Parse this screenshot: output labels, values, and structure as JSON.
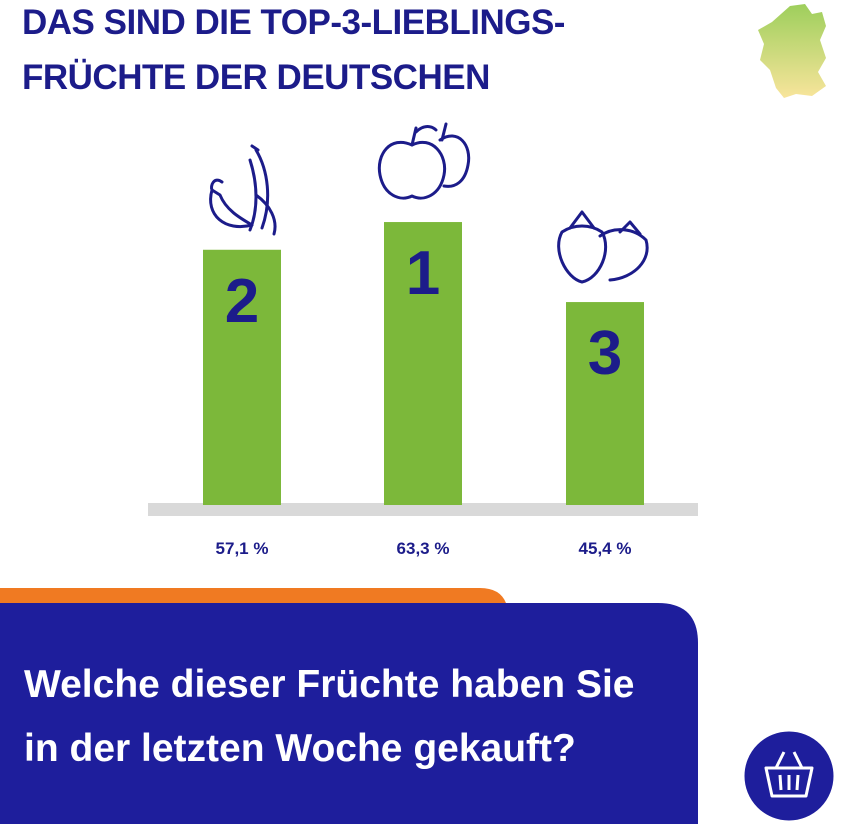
{
  "chart_data": {
    "type": "bar",
    "title": [
      "DAS SIND DIE TOP-3-LIEBLINGS-",
      "FRÜCHTE DER DEUTSCHEN"
    ],
    "categories": [
      null,
      null,
      null
    ],
    "ranks": [
      "2",
      "1",
      "3"
    ],
    "values": [
      57.1,
      63.3,
      45.4
    ],
    "value_labels": [
      "57,1 %",
      "63,3 %",
      "45,4 %"
    ],
    "color": "#7cb83a",
    "question": [
      "Welche dieser Früchte haben Sie",
      "in der letzten Woche gekauft?"
    ]
  }
}
